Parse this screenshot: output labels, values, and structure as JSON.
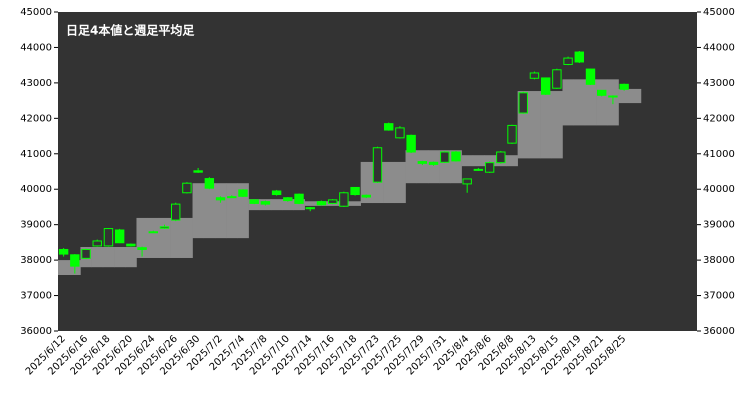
{
  "chart_data": {
    "type": "candlestick",
    "title": "日足4本値と週足平均足",
    "categories": [
      "2025/6/12",
      null,
      "2025/6/16",
      null,
      "2025/6/18",
      null,
      "2025/6/20",
      null,
      "2025/6/24",
      null,
      "2025/6/26",
      null,
      "2025/6/30",
      null,
      "2025/7/2",
      null,
      "2025/7/4",
      null,
      "2025/7/8",
      null,
      "2025/7/10",
      null,
      "2025/7/14",
      null,
      "2025/7/16",
      null,
      "2025/7/18",
      null,
      "2025/7/23",
      null,
      "2025/7/25",
      null,
      "2025/7/29",
      null,
      "2025/7/31",
      null,
      "2025/8/4",
      null,
      "2025/8/6",
      null,
      "2025/8/8",
      null,
      "2025/8/13",
      null,
      "2025/8/15",
      null,
      "2025/8/19",
      null,
      "2025/8/21",
      null,
      "2025/8/25",
      null,
      null,
      null,
      null,
      null,
      null
    ],
    "open": [
      38300,
      38150,
      38050,
      38400,
      38400,
      38850,
      38450,
      38350,
      38790,
      38900,
      39130,
      39900,
      40520,
      40300,
      39760,
      39780,
      39980,
      39700,
      39650,
      39950,
      39760,
      39860,
      39480,
      39650,
      39600,
      39520,
      40050,
      39830,
      40200,
      41850,
      41450,
      41520,
      40780,
      40760,
      40760,
      41050,
      40150,
      40550,
      40480,
      40750,
      41300,
      42150,
      43130,
      43140,
      42850,
      43520,
      43870,
      43390,
      42790,
      42620,
      42960,
      null,
      null,
      null,
      null,
      null,
      null
    ],
    "high": [
      38340,
      38170,
      38320,
      38580,
      38900,
      38880,
      38470,
      38380,
      38830,
      39000,
      39620,
      40200,
      40600,
      40340,
      39800,
      39830,
      40000,
      39720,
      39680,
      39980,
      39780,
      39880,
      39500,
      39680,
      39720,
      39930,
      40060,
      39850,
      41200,
      41880,
      41780,
      41540,
      40800,
      40780,
      41070,
      41080,
      40300,
      40600,
      40780,
      41080,
      41820,
      42750,
      43320,
      43150,
      43400,
      43740,
      43900,
      43400,
      42800,
      42650,
      42980,
      null,
      null,
      null,
      null,
      null,
      null
    ],
    "low": [
      38100,
      37620,
      38030,
      38380,
      38380,
      38480,
      38380,
      38100,
      38770,
      38880,
      39100,
      39880,
      40460,
      40000,
      39620,
      39750,
      39780,
      39580,
      39540,
      39820,
      39650,
      39580,
      39380,
      39540,
      39580,
      39500,
      39820,
      39750,
      40180,
      41650,
      41430,
      41020,
      40680,
      40660,
      40740,
      40780,
      39900,
      40520,
      40460,
      40720,
      41280,
      42130,
      43100,
      42660,
      42830,
      43500,
      43560,
      42940,
      42620,
      42400,
      42780,
      null,
      null,
      null,
      null,
      null,
      null
    ],
    "close": [
      38170,
      37830,
      38300,
      38540,
      38890,
      38490,
      38400,
      38300,
      38800,
      38940,
      39580,
      40170,
      40480,
      40030,
      39700,
      39790,
      39800,
      39600,
      39580,
      39850,
      39680,
      39600,
      39450,
      39560,
      39700,
      39900,
      39850,
      39780,
      41170,
      41670,
      41730,
      41050,
      40730,
      40700,
      41050,
      40800,
      40290,
      40560,
      40750,
      41050,
      41800,
      42720,
      43280,
      42680,
      43370,
      43700,
      43590,
      42960,
      42650,
      42630,
      42820,
      null,
      null,
      null,
      null,
      null,
      null
    ],
    "weekly_open": [
      38000,
      38000,
      37800,
      37800,
      37800,
      37800,
      37800,
      38060,
      38060,
      38060,
      38060,
      38060,
      38620,
      38620,
      38620,
      38620,
      38620,
      39720,
      39720,
      39720,
      39720,
      39720,
      39530,
      39530,
      39530,
      39530,
      39530,
      39610,
      39610,
      39610,
      39610,
      40170,
      40170,
      40170,
      40170,
      40170,
      40650,
      40650,
      40650,
      40650,
      40650,
      40870,
      40870,
      40870,
      40870,
      41800,
      41800,
      41800,
      41800,
      41800,
      42430,
      42430,
      null,
      null,
      null,
      null,
      null
    ],
    "weekly_close": [
      37580,
      37580,
      38370,
      38370,
      38370,
      38370,
      38370,
      39190,
      39190,
      39190,
      39190,
      39190,
      40170,
      40170,
      40170,
      40170,
      40170,
      39410,
      39410,
      39410,
      39410,
      39410,
      39660,
      39660,
      39660,
      39660,
      39660,
      40770,
      40770,
      40770,
      40770,
      41100,
      41100,
      41100,
      41100,
      41100,
      40960,
      40960,
      40960,
      40960,
      40960,
      42770,
      42770,
      42770,
      42770,
      43100,
      43100,
      43100,
      43100,
      43100,
      42830,
      42830,
      null,
      null,
      null,
      null,
      null
    ],
    "candle_color": "#00ff00",
    "weekly_color": "#8c8c8c",
    "plot_background": "#333333",
    "ylim": [
      36000,
      45000
    ],
    "yticks": [
      36000,
      37000,
      38000,
      39000,
      40000,
      41000,
      42000,
      43000,
      44000,
      45000
    ]
  }
}
